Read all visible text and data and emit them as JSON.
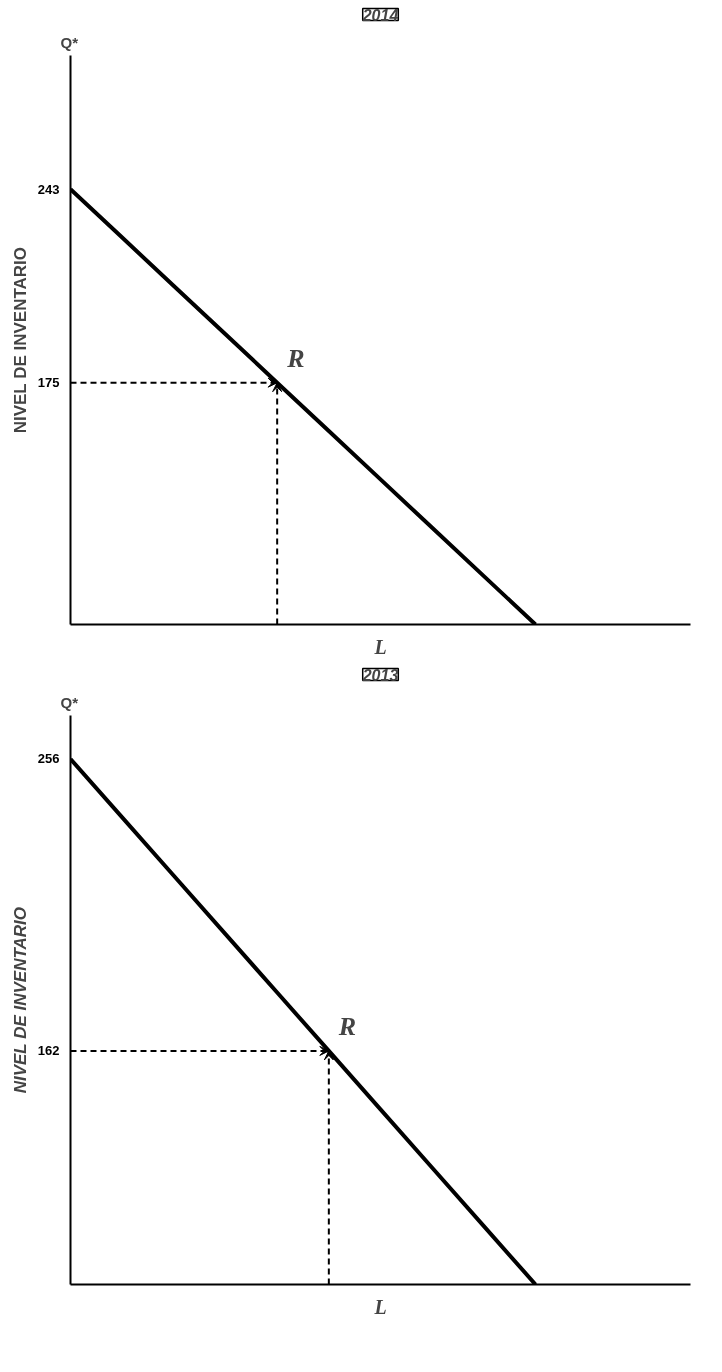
{
  "chart_data": [
    {
      "type": "line",
      "title": "2014",
      "ylabel": "NIVEL DE INVENTARIO",
      "xlabel": "L",
      "grid": false,
      "marker": "none",
      "categories": [
        null,
        null,
        null,
        null,
        null,
        null,
        null,
        null,
        null,
        null,
        null,
        null
      ],
      "ylim": [
        90,
        290
      ],
      "yticks": [
        175,
        243
      ],
      "series": [
        {
          "color": "#000000",
          "values": [
            243,
            226,
            209,
            192,
            175,
            158,
            141,
            124,
            107,
            90,
            null,
            null
          ],
          "line_style": "solid"
        },
        {
          "color": "#000000",
          "values": [
            175,
            175,
            175,
            175,
            175,
            null,
            null,
            null,
            null,
            null,
            null,
            null
          ],
          "line_style": "dashed"
        }
      ],
      "annotations": [
        "Q*",
        "R"
      ]
    },
    {
      "type": "line",
      "title": "2013",
      "ylabel": "NIVEL DE INVENTARIO",
      "xlabel": "L",
      "grid": false,
      "marker": "none",
      "categories": [
        null,
        null,
        null,
        null,
        null,
        null,
        null,
        null,
        null,
        null,
        null,
        null
      ],
      "ylim": [
        86.8,
        270
      ],
      "yticks": [
        162,
        256
      ],
      "series": [
        {
          "color": "#000000",
          "values": [
            256,
            237.2,
            218.4,
            199.6,
            180.8,
            162,
            143.2,
            124.4,
            105.6,
            86.8,
            null,
            null
          ],
          "line_style": "solid"
        },
        {
          "color": "#000000",
          "values": [
            162,
            162,
            162,
            162,
            162,
            162,
            null,
            null,
            null,
            null,
            null,
            null
          ],
          "line_style": "dashed"
        }
      ],
      "annotations": [
        "Q*",
        "R"
      ]
    }
  ]
}
